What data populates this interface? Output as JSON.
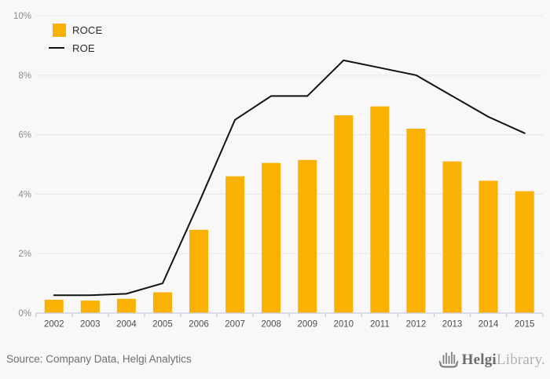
{
  "chart_data": {
    "type": "bar",
    "categories": [
      "2002",
      "2003",
      "2004",
      "2005",
      "2006",
      "2007",
      "2008",
      "2009",
      "2010",
      "2011",
      "2012",
      "2013",
      "2014",
      "2015"
    ],
    "series": [
      {
        "name": "ROCE",
        "type": "bar",
        "color": "#f9b104",
        "values": [
          0.45,
          0.42,
          0.48,
          0.7,
          2.8,
          4.6,
          5.05,
          5.15,
          6.65,
          6.95,
          6.2,
          5.1,
          4.45,
          4.1
        ]
      },
      {
        "name": "ROE",
        "type": "line",
        "color": "#111111",
        "values": [
          0.6,
          0.6,
          0.65,
          1.0,
          3.7,
          6.5,
          7.3,
          7.3,
          8.5,
          8.25,
          8.0,
          7.3,
          6.6,
          6.05
        ]
      }
    ],
    "title": "",
    "xlabel": "",
    "ylabel": "",
    "ylim": [
      0,
      10
    ],
    "ytick_step": 2,
    "ytick_suffix": "%",
    "grid": true,
    "legend_position": "top-left"
  },
  "colors": {
    "background": "#f8f8f8",
    "gridline": "#e9e9e9",
    "axis": "#c7ccd9",
    "y_tick_label": "#8c8c8c",
    "x_tick_label": "#4d4d4d",
    "legend_text": "#2b2b2b",
    "source_text": "#6f6f6f",
    "logo_dark": "#6a6b6f",
    "logo_light": "#aeb0b3",
    "logo_icon": "#7d7e82"
  },
  "footer": {
    "source_text": "Source: Company Data, Helgi Analytics",
    "logo_helgi": "Helgi",
    "logo_library": "Library."
  }
}
